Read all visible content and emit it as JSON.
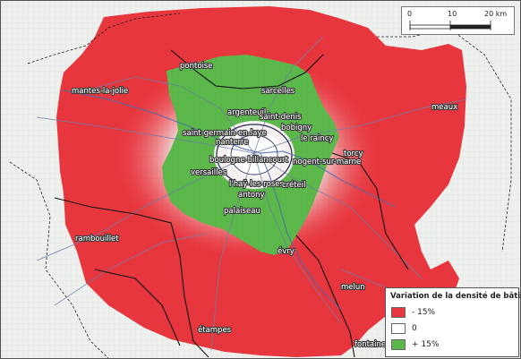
{
  "colors": {
    "negative": "#e8363e",
    "neutral": "#ffffff",
    "positive": "#5cb84a",
    "background": "#eef0ee"
  },
  "scalebar": {
    "ticks": [
      "0",
      "10",
      "20 km"
    ]
  },
  "legend": {
    "title": "Variation de la densité de bâti",
    "items": [
      {
        "label": "- 15%",
        "color": "#e8363e"
      },
      {
        "label": "0",
        "color": "#ffffff"
      },
      {
        "label": "+ 15%",
        "color": "#5cb84a"
      }
    ]
  },
  "cities": [
    "pontoise",
    "mantes-la-jolie",
    "sarcelles",
    "meaux",
    "argenteuil",
    "saint-denis",
    "bobigny",
    "saint-germain-en-laye",
    "le raincy",
    "nanterre",
    "torcy",
    "nogent-sur-marne",
    "boulogne-billancourt",
    "versailles",
    "l'haÿ-les-roses",
    "créteil",
    "antony",
    "palaiseau",
    "rambouillet",
    "évry",
    "melun",
    "étampes",
    "fontainebleau"
  ]
}
